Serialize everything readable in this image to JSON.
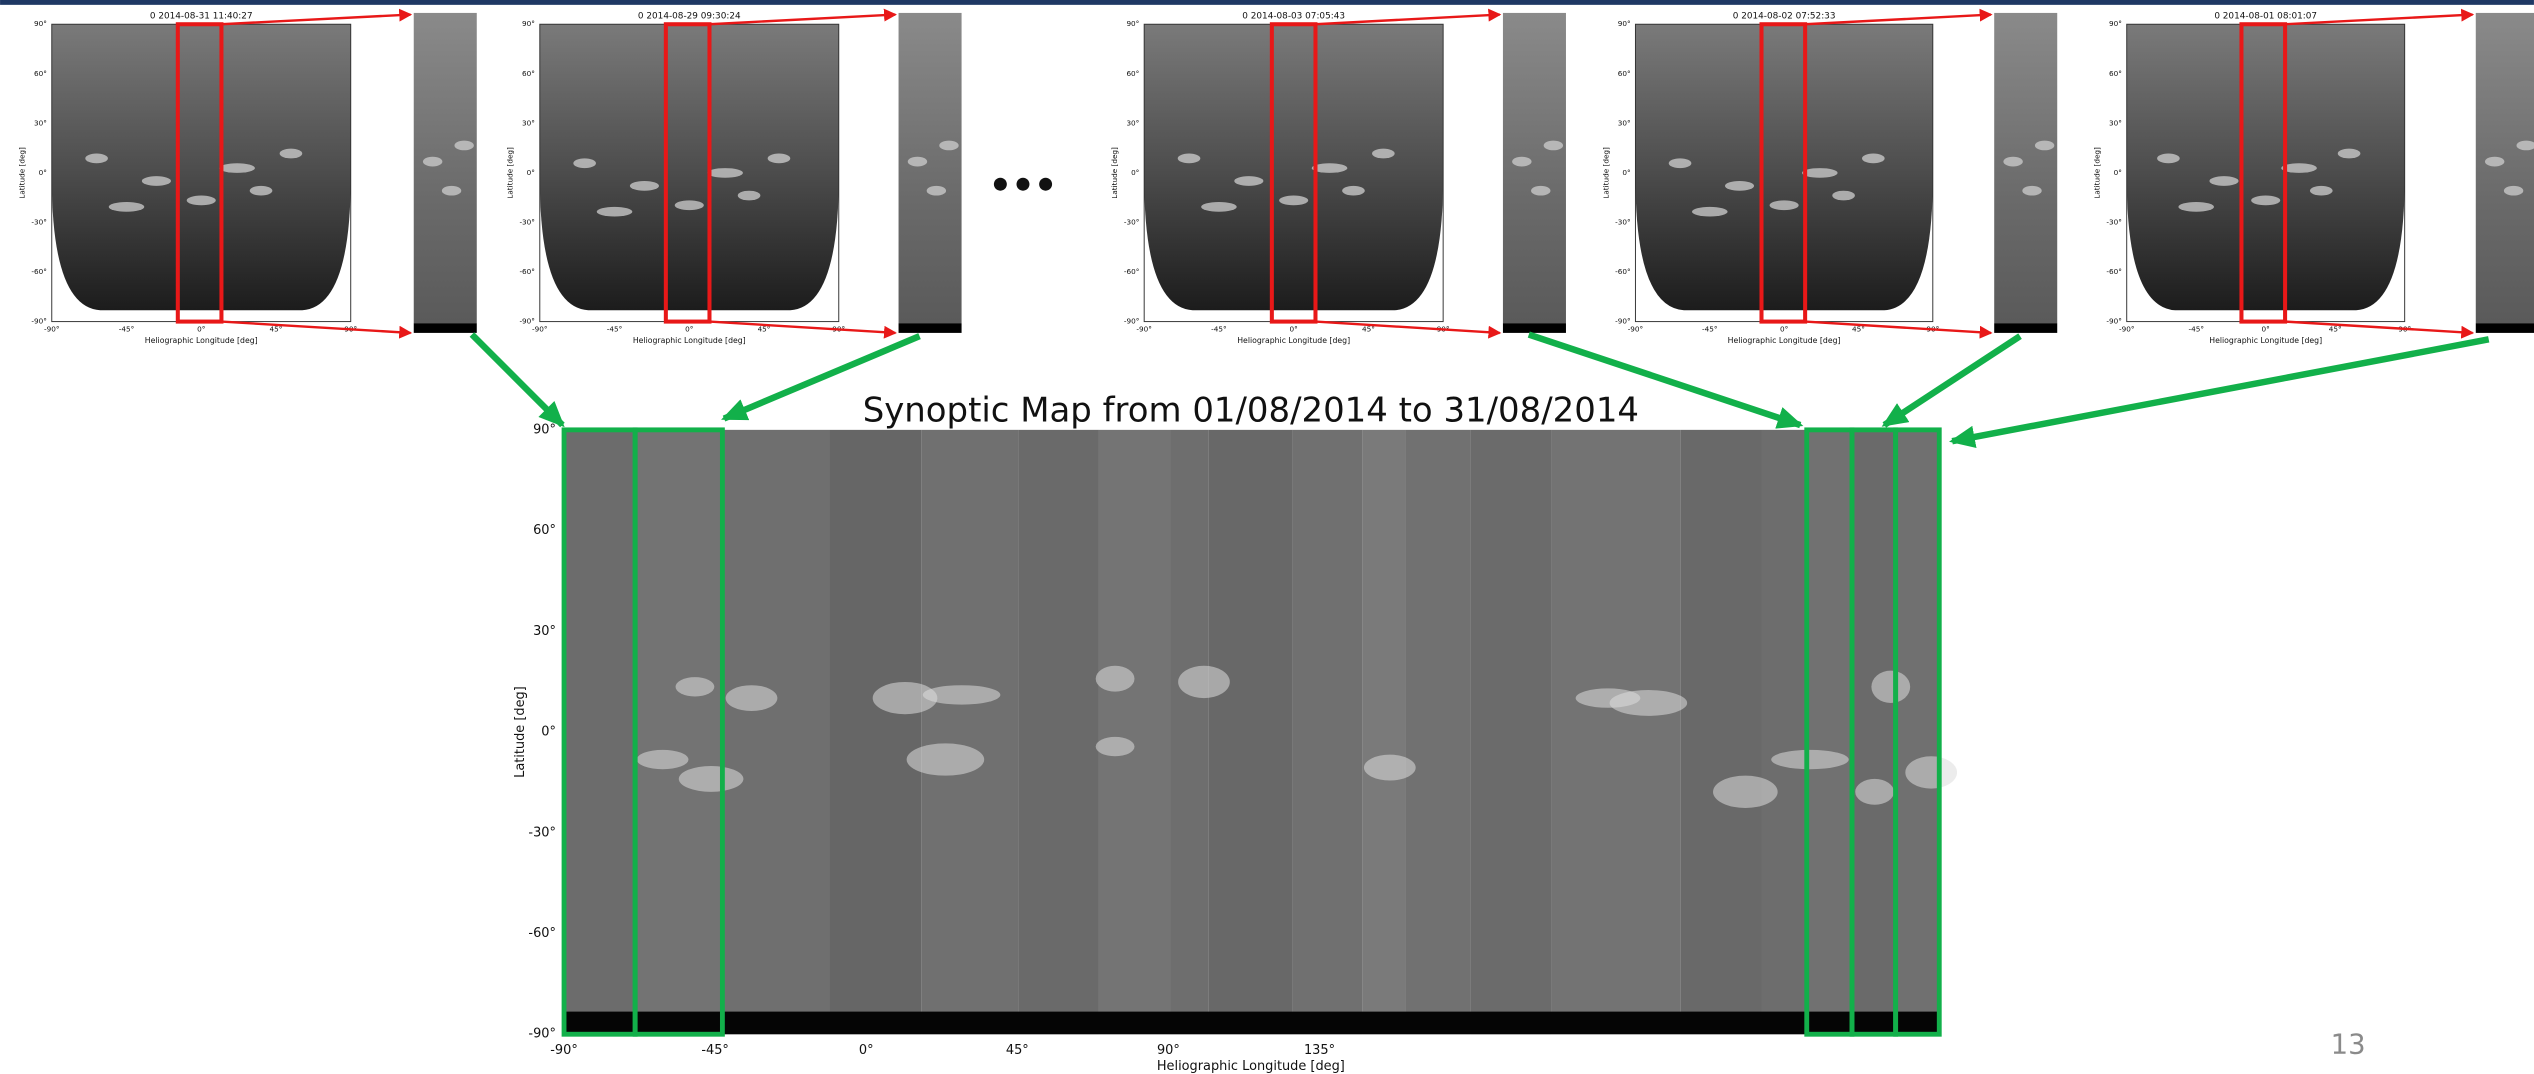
{
  "panels": [
    {
      "title": "0  2014-08-31 11:40:27",
      "y_label": "Latitude [deg]",
      "x_label": "Heliographic Longitude [deg]",
      "yticks": [
        "90°",
        "60°",
        "30°",
        "0°",
        "-30°",
        "-60°",
        "-90°"
      ],
      "xticks": [
        "-90°",
        "-45°",
        "0°",
        "45°",
        "90°"
      ]
    },
    {
      "title": "0  2014-08-29 09:30:24",
      "y_label": "Latitude [deg]",
      "x_label": "Heliographic Longitude [deg]",
      "yticks": [
        "90°",
        "60°",
        "30°",
        "0°",
        "-30°",
        "-60°",
        "-90°"
      ],
      "xticks": [
        "-90°",
        "-45°",
        "0°",
        "45°",
        "90°"
      ]
    },
    {
      "title": "0  2014-08-03 07:05:43",
      "y_label": "Latitude [deg]",
      "x_label": "Heliographic Longitude [deg]",
      "yticks": [
        "90°",
        "60°",
        "30°",
        "0°",
        "-30°",
        "-60°",
        "-90°"
      ],
      "xticks": [
        "-90°",
        "-45°",
        "0°",
        "45°",
        "90°"
      ]
    },
    {
      "title": "0  2014-08-02 07:52:33",
      "y_label": "Latitude [deg]",
      "x_label": "Heliographic Longitude [deg]",
      "yticks": [
        "90°",
        "60°",
        "30°",
        "0°",
        "-30°",
        "-60°",
        "-90°"
      ],
      "xticks": [
        "-90°",
        "-45°",
        "0°",
        "45°",
        "90°"
      ]
    },
    {
      "title": "0  2014-08-01 08:01:07",
      "y_label": "Latitude [deg]",
      "x_label": "Heliographic Longitude [deg]",
      "yticks": [
        "90°",
        "60°",
        "30°",
        "0°",
        "-30°",
        "-60°",
        "-90°"
      ],
      "xticks": [
        "-90°",
        "-45°",
        "0°",
        "45°",
        "90°"
      ]
    }
  ],
  "synoptic_map": {
    "title": "Synoptic Map from 01/08/2014 to 31/08/2014",
    "y_label": "Latitude [deg]",
    "x_label": "Heliographic Longitude [deg]",
    "yticks": [
      "90°",
      "60°",
      "30°",
      "0°",
      "-30°",
      "-60°",
      "-90°"
    ],
    "xticks": [
      "-90°",
      "-45°",
      "0°",
      "45°",
      "90°",
      "135°"
    ]
  },
  "page_number": "13"
}
